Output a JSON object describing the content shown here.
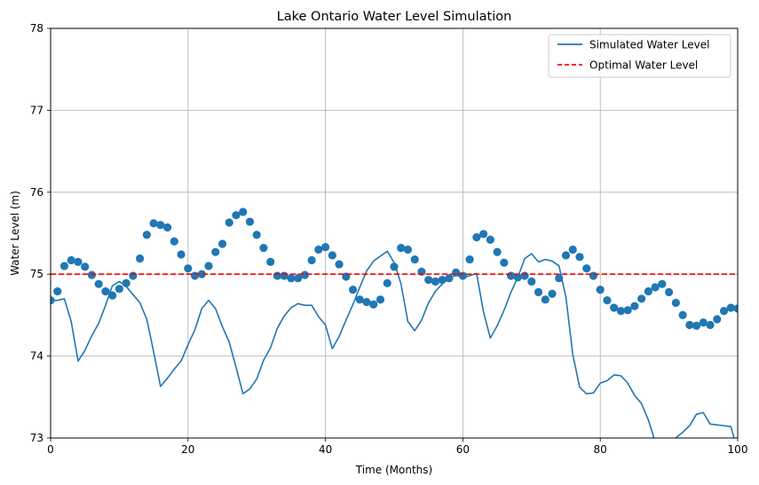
{
  "chart_data": {
    "type": "line",
    "title": "Lake Ontario Water Level Simulation",
    "xlabel": "Time (Months)",
    "ylabel": "Water Level (m)",
    "xlim": [
      0,
      100
    ],
    "ylim": [
      73,
      78
    ],
    "xticks": [
      0,
      20,
      40,
      60,
      80,
      100
    ],
    "yticks": [
      73,
      74,
      75,
      76,
      77,
      78
    ],
    "grid": true,
    "legend_position": "top-right",
    "colors": {
      "line": "#1f77b4",
      "points": "#1f77b4",
      "optimal": "#ff0000"
    },
    "optimal_level": 75.0,
    "series": [
      {
        "name": "Simulated Water Level",
        "kind": "line",
        "x": [
          0,
          1,
          2,
          3,
          4,
          5,
          6,
          7,
          8,
          9,
          10,
          11,
          12,
          13,
          14,
          15,
          16,
          17,
          18,
          19,
          20,
          21,
          22,
          23,
          24,
          25,
          26,
          27,
          28,
          29,
          30,
          31,
          32,
          33,
          34,
          35,
          36,
          37,
          38,
          39,
          40,
          41,
          42,
          43,
          44,
          45,
          46,
          47,
          48,
          49,
          50,
          51,
          52,
          53,
          54,
          55,
          56,
          57,
          58,
          59,
          60,
          61,
          62,
          63,
          64,
          65,
          66,
          67,
          68,
          69,
          70,
          71,
          72,
          73,
          74,
          75,
          76,
          77,
          78,
          79,
          80,
          81,
          82,
          83,
          84,
          85,
          86,
          87,
          88,
          89,
          90,
          91,
          92,
          93,
          94,
          95,
          96,
          97,
          98,
          99,
          100
        ],
        "y": [
          74.68,
          74.68,
          74.7,
          74.42,
          73.94,
          74.07,
          74.25,
          74.4,
          74.62,
          74.86,
          74.91,
          74.85,
          74.75,
          74.65,
          74.45,
          74.05,
          73.63,
          73.73,
          73.84,
          73.94,
          74.14,
          74.32,
          74.58,
          74.68,
          74.58,
          74.36,
          74.17,
          73.86,
          73.54,
          73.6,
          73.72,
          73.95,
          74.1,
          74.34,
          74.49,
          74.59,
          74.64,
          74.62,
          74.62,
          74.48,
          74.38,
          74.09,
          74.24,
          74.44,
          74.63,
          74.84,
          75.04,
          75.16,
          75.22,
          75.28,
          75.14,
          74.88,
          74.42,
          74.31,
          74.44,
          74.65,
          74.79,
          74.88,
          74.95,
          74.99,
          74.96,
          74.98,
          75.01,
          74.54,
          74.22,
          74.37,
          74.56,
          74.78,
          74.96,
          75.19,
          75.25,
          75.15,
          75.18,
          75.16,
          75.1,
          74.72,
          74.02,
          73.62,
          73.54,
          73.55,
          73.67,
          73.7,
          73.77,
          73.76,
          73.67,
          73.52,
          73.42,
          73.22,
          72.95,
          72.95,
          72.98,
          73.0,
          73.07,
          73.15,
          73.29,
          73.31,
          73.17,
          73.16,
          73.15,
          73.14,
          72.85
        ]
      },
      {
        "name": "",
        "kind": "scatter",
        "x": [
          0,
          1,
          2,
          3,
          4,
          5,
          6,
          7,
          8,
          9,
          10,
          11,
          12,
          13,
          14,
          15,
          16,
          17,
          18,
          19,
          20,
          21,
          22,
          23,
          24,
          25,
          26,
          27,
          28,
          29,
          30,
          31,
          32,
          33,
          34,
          35,
          36,
          37,
          38,
          39,
          40,
          41,
          42,
          43,
          44,
          45,
          46,
          47,
          48,
          49,
          50,
          51,
          52,
          53,
          54,
          55,
          56,
          57,
          58,
          59,
          60,
          61,
          62,
          63,
          64,
          65,
          66,
          67,
          68,
          69,
          70,
          71,
          72,
          73,
          74,
          75,
          76,
          77,
          78,
          79,
          80,
          81,
          82,
          83,
          84,
          85,
          86,
          87,
          88,
          89,
          90,
          91,
          92,
          93,
          94,
          95,
          96,
          97,
          98,
          99,
          100
        ],
        "y": [
          74.68,
          74.79,
          75.1,
          75.17,
          75.15,
          75.09,
          74.99,
          74.88,
          74.79,
          74.74,
          74.82,
          74.89,
          74.98,
          75.19,
          75.48,
          75.62,
          75.6,
          75.57,
          75.4,
          75.24,
          75.07,
          74.98,
          75.0,
          75.1,
          75.27,
          75.37,
          75.63,
          75.72,
          75.76,
          75.64,
          75.48,
          75.32,
          75.15,
          74.98,
          74.98,
          74.95,
          74.95,
          74.99,
          75.17,
          75.3,
          75.33,
          75.23,
          75.12,
          74.97,
          74.81,
          74.69,
          74.66,
          74.63,
          74.69,
          74.89,
          75.09,
          75.32,
          75.3,
          75.18,
          75.03,
          74.93,
          74.91,
          74.93,
          74.95,
          75.02,
          74.98,
          75.18,
          75.45,
          75.49,
          75.42,
          75.27,
          75.14,
          74.98,
          74.96,
          74.98,
          74.91,
          74.78,
          74.69,
          74.76,
          74.95,
          75.23,
          75.3,
          75.21,
          75.07,
          74.98,
          74.81,
          74.68,
          74.59,
          74.55,
          74.56,
          74.61,
          74.7,
          74.79,
          74.84,
          74.88,
          74.78,
          74.65,
          74.5,
          74.38,
          74.37,
          74.41,
          74.38,
          74.45,
          74.55,
          74.59,
          74.58
        ]
      },
      {
        "name": "Optimal Water Level",
        "kind": "hline",
        "y": 75.0
      }
    ]
  }
}
